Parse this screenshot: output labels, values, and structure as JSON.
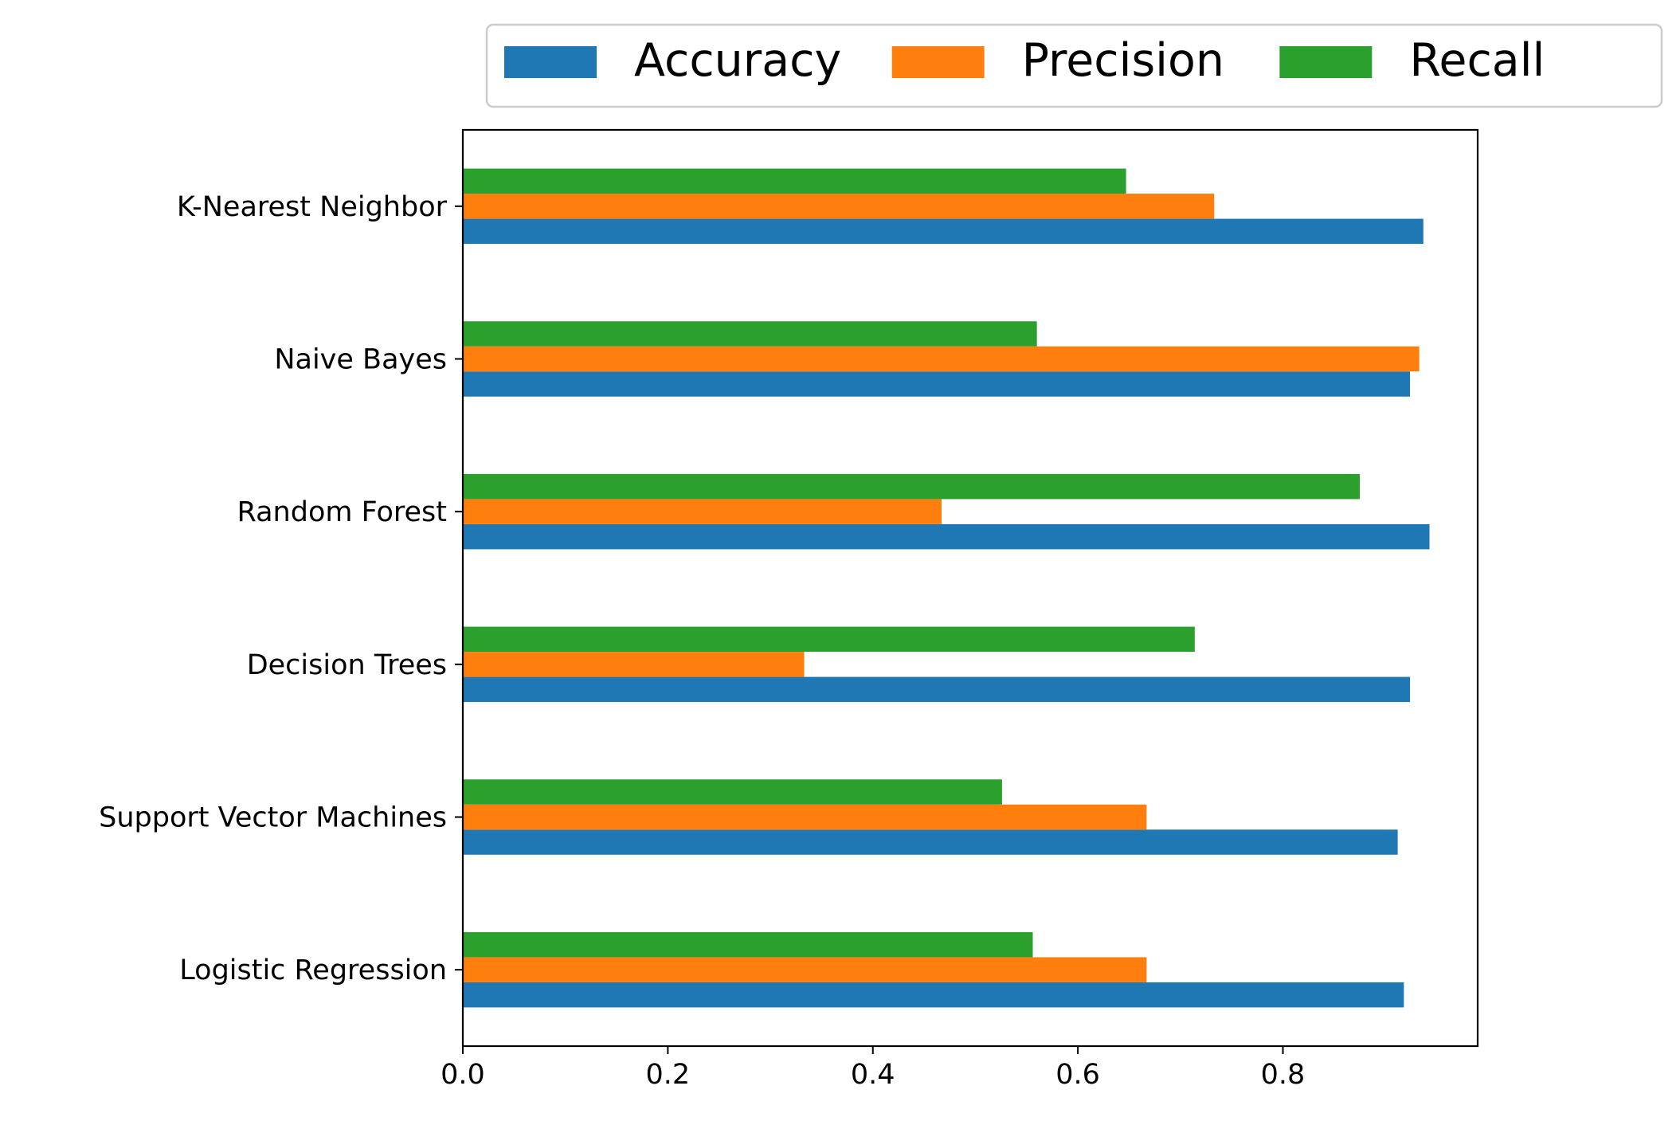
{
  "chart_data": {
    "type": "bar",
    "orientation": "horizontal",
    "title": "",
    "xlabel": "",
    "ylabel": "",
    "categories": [
      "Logistic Regression",
      "Support Vector Machines",
      "Decision Trees",
      "Random Forest",
      "Naive Bayes",
      "K-Nearest Neighbor"
    ],
    "series": [
      {
        "name": "Accuracy",
        "color": "#1f77b4",
        "values": [
          0.918,
          0.912,
          0.924,
          0.943,
          0.924,
          0.937
        ]
      },
      {
        "name": "Precision",
        "color": "#ff7f0e",
        "values": [
          0.667,
          0.667,
          0.333,
          0.467,
          0.933,
          0.733
        ]
      },
      {
        "name": "Recall",
        "color": "#2ca02c",
        "values": [
          0.556,
          0.526,
          0.714,
          0.875,
          0.56,
          0.647
        ]
      }
    ],
    "xlim": [
      0,
      0.99
    ],
    "xticks": [
      0.0,
      0.2,
      0.4,
      0.6,
      0.8
    ],
    "xtick_labels": [
      "0.0",
      "0.2",
      "0.4",
      "0.6",
      "0.8"
    ],
    "grid": false,
    "legend_position": "top-right, above plot"
  }
}
